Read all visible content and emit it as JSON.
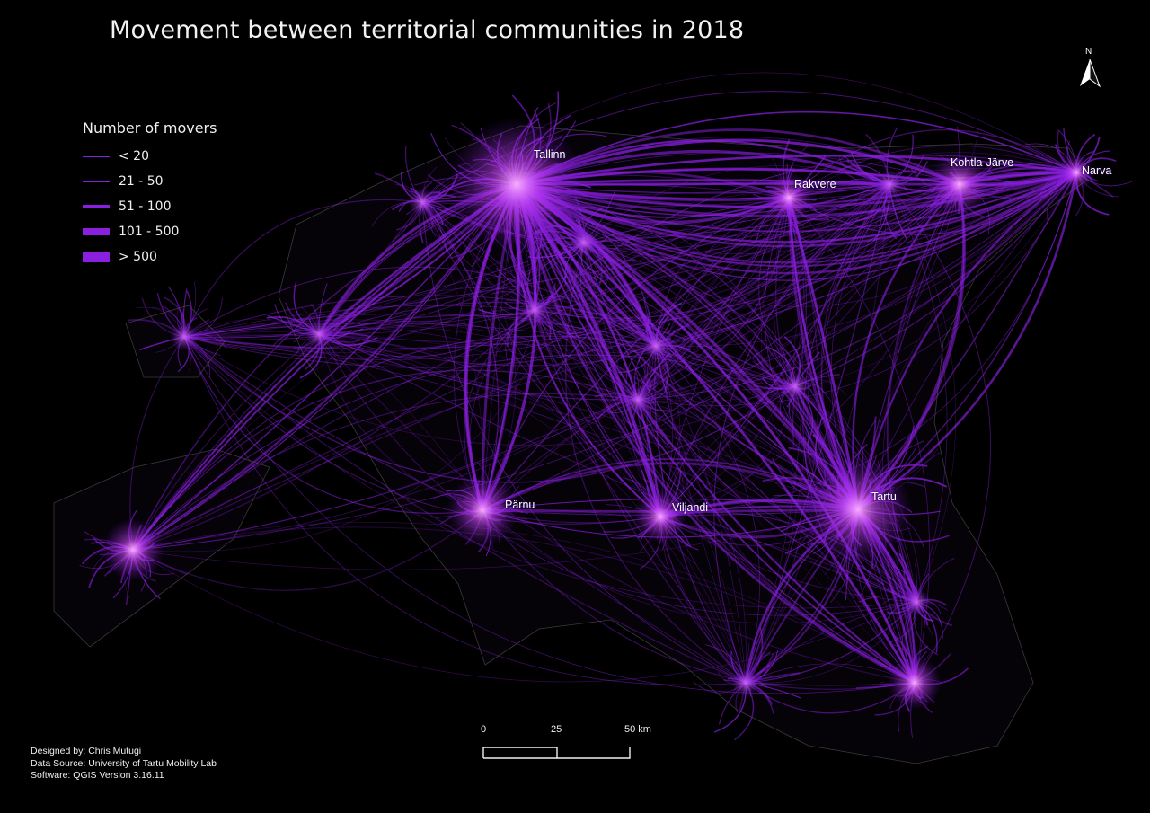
{
  "title": "Movement between territorial communities in 2018",
  "legend": {
    "title": "Number of movers",
    "items": [
      {
        "label": "< 20"
      },
      {
        "label": "21 - 50"
      },
      {
        "label": "51 - 100"
      },
      {
        "label": "101 - 500"
      },
      {
        "label": "> 500"
      }
    ]
  },
  "cities": [
    {
      "name": "Tallinn"
    },
    {
      "name": "Rakvere"
    },
    {
      "name": "Kohtla-Järve"
    },
    {
      "name": "Narva"
    },
    {
      "name": "Pärnu"
    },
    {
      "name": "Viljandi"
    },
    {
      "name": "Tartu"
    }
  ],
  "scale_bar": {
    "ticks": [
      "0",
      "25",
      "50 km"
    ]
  },
  "north_arrow": {
    "letter": "N",
    "icon": "north-arrow-icon"
  },
  "credits": {
    "designer": "Designed by: Chris Mutugi",
    "source": "Data Source: University of Tartu Mobility Lab",
    "software": "Software: QGIS Version 3.16.11"
  },
  "colors": {
    "background": "#000000",
    "flow": "#8a1fe0",
    "hub_glow": "#ff7dff",
    "outline": "#3a3a3a"
  }
}
